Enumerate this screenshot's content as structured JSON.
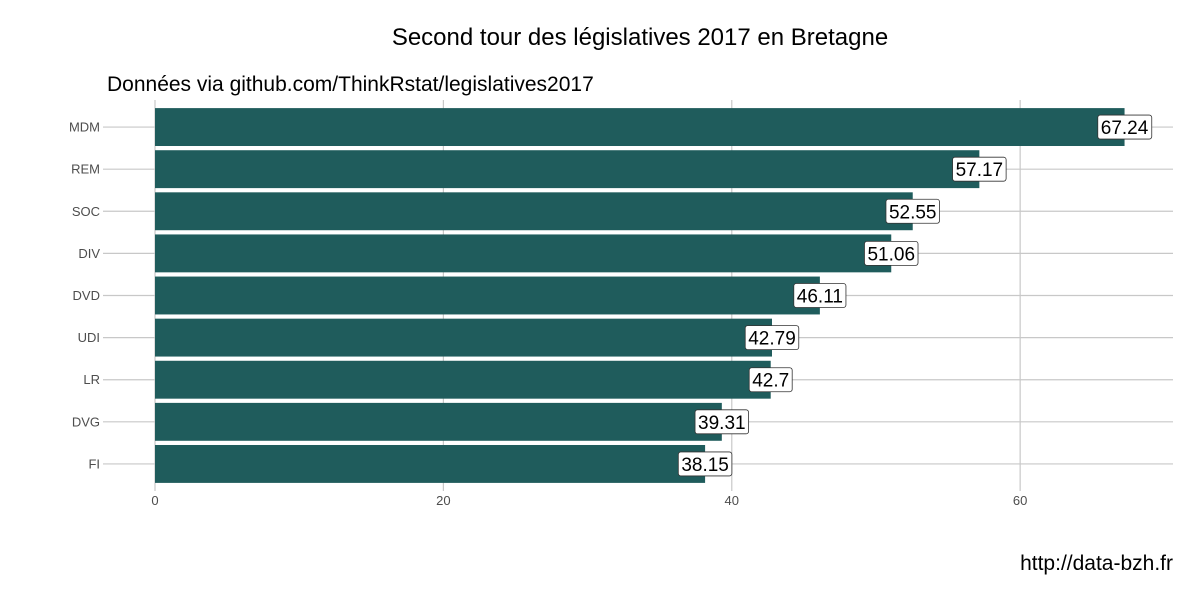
{
  "chart_data": {
    "type": "bar",
    "orientation": "horizontal",
    "title": "Second tour des législatives 2017 en Bretagne",
    "subtitle": "Données via github.com/ThinkRstat/legislatives2017",
    "caption": "http://data-bzh.fr",
    "xlabel": "",
    "ylabel": "",
    "categories": [
      "MDM",
      "REM",
      "SOC",
      "DIV",
      "DVD",
      "UDI",
      "LR",
      "DVG",
      "FI"
    ],
    "values": [
      67.24,
      57.17,
      52.55,
      51.06,
      46.11,
      42.79,
      42.7,
      39.31,
      38.15
    ],
    "data_labels": [
      "67.24",
      "57.17",
      "52.55",
      "51.06",
      "46.11",
      "42.79",
      "42.7",
      "39.31",
      "38.15"
    ],
    "xlim": [
      0,
      70.6
    ],
    "x_ticks": [
      0,
      20,
      40,
      60
    ],
    "x_tick_labels": [
      "0",
      "20",
      "40",
      "60"
    ],
    "grid": true,
    "legend": "none",
    "colors": {
      "bar": "#1f5c5c",
      "grid": "#c8c8c8",
      "label_border": "#333333"
    }
  }
}
